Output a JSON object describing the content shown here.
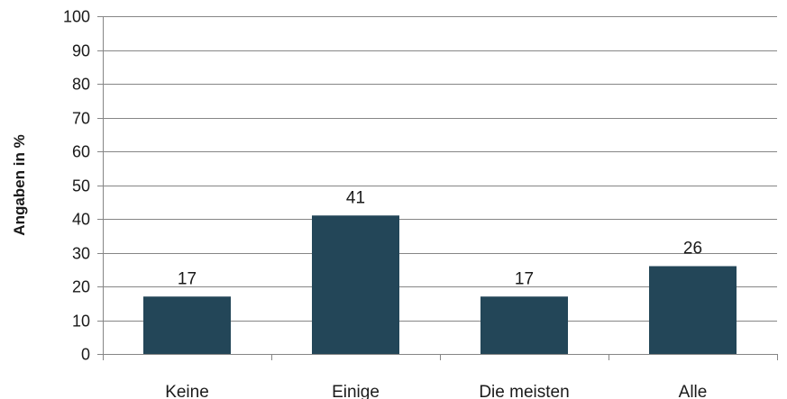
{
  "chart_data": {
    "type": "bar",
    "title": "",
    "xlabel": "",
    "ylabel": "Angaben in %",
    "categories": [
      "Keine",
      "Einige",
      "Die meisten",
      "Alle"
    ],
    "values": [
      17,
      41,
      17,
      26
    ],
    "data_labels": [
      "17",
      "41",
      "17",
      "26"
    ],
    "ylim": [
      0,
      100
    ],
    "yticks": [
      0,
      10,
      20,
      30,
      40,
      50,
      60,
      70,
      80,
      90,
      100
    ],
    "ytick_labels": [
      "0",
      "10",
      "20",
      "30",
      "40",
      "50",
      "60",
      "70",
      "80",
      "90",
      "100"
    ],
    "grid": true,
    "legend": "none",
    "colors": {
      "bar": "#234658",
      "grid": "#868686",
      "axis": "#868686"
    }
  }
}
